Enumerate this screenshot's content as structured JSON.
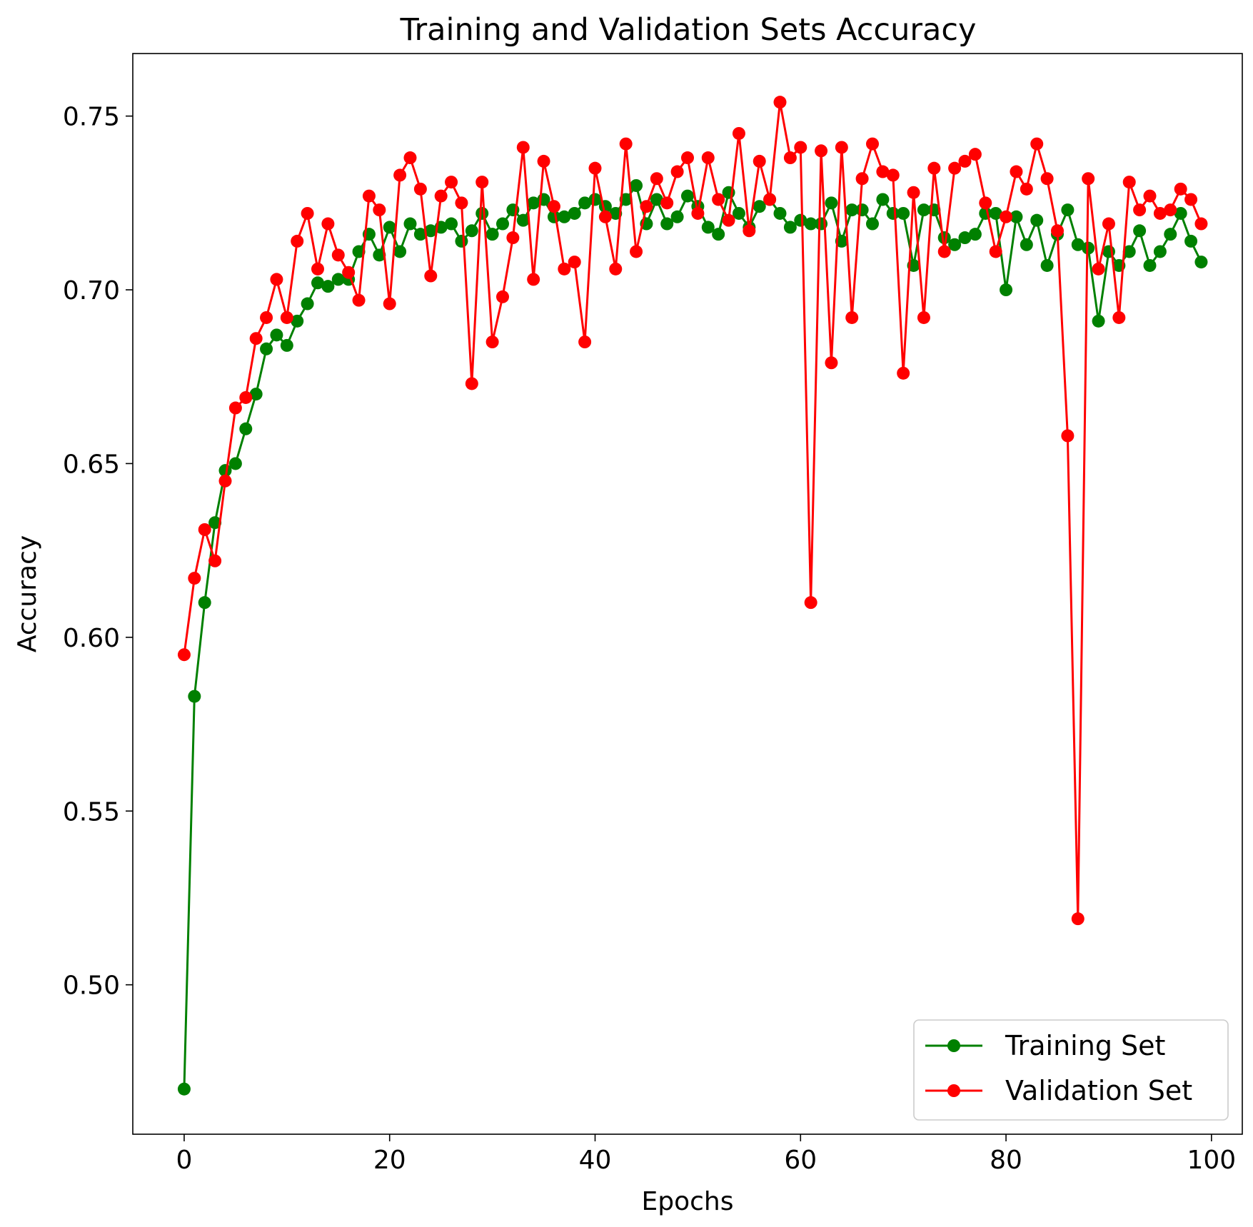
{
  "chart_data": {
    "type": "line",
    "title": "Training and Validation Sets Accuracy",
    "xlabel": "Epochs",
    "ylabel": "Accuracy",
    "xlim": [
      -5,
      103
    ],
    "ylim": [
      0.457,
      0.768
    ],
    "xticks": [
      0,
      20,
      40,
      60,
      80,
      100
    ],
    "xtick_labels": [
      "0",
      "20",
      "40",
      "60",
      "80",
      "100"
    ],
    "yticks": [
      0.5,
      0.55,
      0.6,
      0.65,
      0.7,
      0.75
    ],
    "ytick_labels": [
      "0.50",
      "0.55",
      "0.60",
      "0.65",
      "0.70",
      "0.75"
    ],
    "grid": false,
    "legend_position": "bottom-right",
    "x": [
      0,
      1,
      2,
      3,
      4,
      5,
      6,
      7,
      8,
      9,
      10,
      11,
      12,
      13,
      14,
      15,
      16,
      17,
      18,
      19,
      20,
      21,
      22,
      23,
      24,
      25,
      26,
      27,
      28,
      29,
      30,
      31,
      32,
      33,
      34,
      35,
      36,
      37,
      38,
      39,
      40,
      41,
      42,
      43,
      44,
      45,
      46,
      47,
      48,
      49,
      50,
      51,
      52,
      53,
      54,
      55,
      56,
      57,
      58,
      59,
      60,
      61,
      62,
      63,
      64,
      65,
      66,
      67,
      68,
      69,
      70,
      71,
      72,
      73,
      74,
      75,
      76,
      77,
      78,
      79,
      80,
      81,
      82,
      83,
      84,
      85,
      86,
      87,
      88,
      89,
      90,
      91,
      92,
      93,
      94,
      95,
      96,
      97,
      98,
      99
    ],
    "series": [
      {
        "name": "Training Set",
        "color": "#008000",
        "values": [
          0.47,
          0.583,
          0.61,
          0.633,
          0.648,
          0.65,
          0.66,
          0.67,
          0.683,
          0.687,
          0.684,
          0.691,
          0.696,
          0.702,
          0.701,
          0.703,
          0.703,
          0.711,
          0.716,
          0.71,
          0.718,
          0.711,
          0.719,
          0.716,
          0.717,
          0.718,
          0.719,
          0.714,
          0.717,
          0.722,
          0.716,
          0.719,
          0.723,
          0.72,
          0.725,
          0.726,
          0.721,
          0.721,
          0.722,
          0.725,
          0.726,
          0.724,
          0.722,
          0.726,
          0.73,
          0.719,
          0.726,
          0.719,
          0.721,
          0.727,
          0.724,
          0.718,
          0.716,
          0.728,
          0.722,
          0.718,
          0.724,
          0.726,
          0.722,
          0.718,
          0.72,
          0.719,
          0.719,
          0.725,
          0.714,
          0.723,
          0.723,
          0.719,
          0.726,
          0.722,
          0.722,
          0.707,
          0.723,
          0.723,
          0.715,
          0.713,
          0.715,
          0.716,
          0.722,
          0.722,
          0.7,
          0.721,
          0.713,
          0.72,
          0.707,
          0.716,
          0.723,
          0.713,
          0.712,
          0.691,
          0.711,
          0.707,
          0.711,
          0.717,
          0.707,
          0.711,
          0.716,
          0.722,
          0.714,
          0.708
        ]
      },
      {
        "name": "Validation Set",
        "color": "#ff0000",
        "values": [
          0.595,
          0.617,
          0.631,
          0.622,
          0.645,
          0.666,
          0.669,
          0.686,
          0.692,
          0.703,
          0.692,
          0.714,
          0.722,
          0.706,
          0.719,
          0.71,
          0.705,
          0.697,
          0.727,
          0.723,
          0.696,
          0.733,
          0.738,
          0.729,
          0.704,
          0.727,
          0.731,
          0.725,
          0.673,
          0.731,
          0.685,
          0.698,
          0.715,
          0.741,
          0.703,
          0.737,
          0.724,
          0.706,
          0.708,
          0.685,
          0.735,
          0.721,
          0.706,
          0.742,
          0.711,
          0.724,
          0.732,
          0.725,
          0.734,
          0.738,
          0.722,
          0.738,
          0.726,
          0.72,
          0.745,
          0.717,
          0.737,
          0.726,
          0.754,
          0.738,
          0.741,
          0.61,
          0.74,
          0.679,
          0.741,
          0.692,
          0.732,
          0.742,
          0.734,
          0.733,
          0.676,
          0.728,
          0.692,
          0.735,
          0.711,
          0.735,
          0.737,
          0.739,
          0.725,
          0.711,
          0.721,
          0.734,
          0.729,
          0.742,
          0.732,
          0.717,
          0.658,
          0.519,
          0.732,
          0.706,
          0.719,
          0.692,
          0.731,
          0.723,
          0.727,
          0.722,
          0.723,
          0.729,
          0.726,
          0.719
        ]
      }
    ]
  }
}
